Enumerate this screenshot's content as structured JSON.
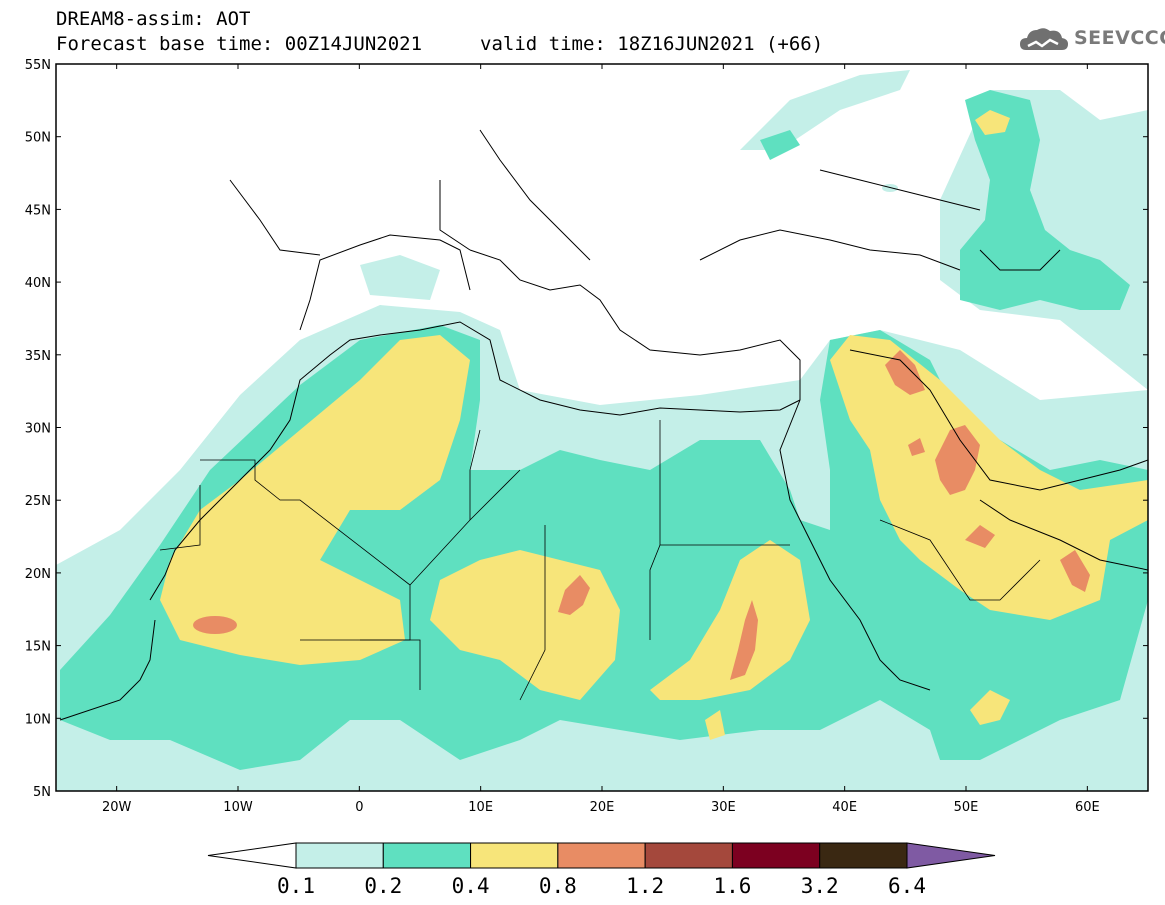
{
  "header": {
    "title": "DREAM8-assim: AOT",
    "base_time": "Forecast base time: 00Z14JUN2021",
    "valid_time": "valid time: 18Z16JUN2021 (+66)"
  },
  "logo": {
    "text": "SEEVCCC",
    "icon": "cloud-icon"
  },
  "map": {
    "lon_range": [
      -25,
      65
    ],
    "lat_range": [
      5,
      55
    ],
    "lon_ticks": [
      "20W",
      "10W",
      "0",
      "10E",
      "20E",
      "30E",
      "40E",
      "50E",
      "60E"
    ],
    "lat_ticks": [
      "55N",
      "50N",
      "45N",
      "40N",
      "35N",
      "30N",
      "25N",
      "20N",
      "15N",
      "10N",
      "5N"
    ],
    "variable": "AOT"
  },
  "colorbar": {
    "labels": [
      "0.1",
      "0.2",
      "0.4",
      "0.8",
      "1.2",
      "1.6",
      "3.2",
      "6.4"
    ],
    "colors": [
      "#ffffff",
      "#c4efe8",
      "#5fe0c0",
      "#f7e57a",
      "#e88c64",
      "#a4483c",
      "#7c0020",
      "#3a2812",
      "#7f5aa3"
    ]
  }
}
